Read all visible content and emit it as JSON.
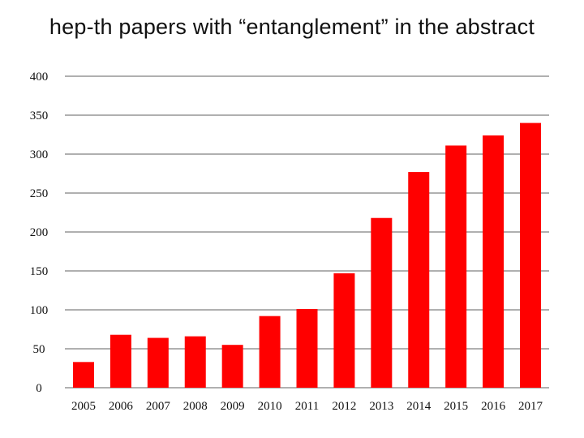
{
  "chart_data": {
    "type": "bar",
    "title": "hep-th papers with “entanglement” in the abstract",
    "xlabel": "",
    "ylabel": "",
    "categories": [
      "2005",
      "2006",
      "2007",
      "2008",
      "2009",
      "2010",
      "2011",
      "2012",
      "2013",
      "2014",
      "2015",
      "2016",
      "2017"
    ],
    "values": [
      33,
      68,
      64,
      66,
      55,
      92,
      101,
      147,
      218,
      277,
      311,
      324,
      340
    ],
    "ylim": [
      0,
      400
    ],
    "yticks": [
      0,
      50,
      100,
      150,
      200,
      250,
      300,
      350,
      400
    ],
    "grid": true,
    "legend": "none",
    "colors": {
      "bar": "#ff0000",
      "grid": "#808080",
      "text": "#111111"
    }
  }
}
